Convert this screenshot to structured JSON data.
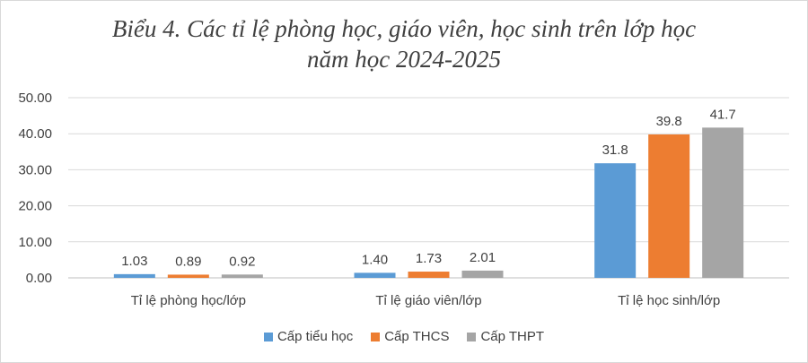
{
  "chart_data": {
    "type": "bar",
    "title_line1": "Biểu 4. Các tỉ lệ phòng học, giáo viên, học sinh trên lớp học",
    "title_line2": "năm học 2024-2025",
    "categories": [
      "Tỉ lệ phòng học/lớp",
      "Tỉ lệ giáo viên/lớp",
      "Tỉ lệ học sinh/lớp"
    ],
    "series": [
      {
        "name": "Cấp tiểu học",
        "color": "#5b9bd5",
        "values": [
          1.03,
          1.4,
          31.8
        ],
        "labels": [
          "1.03",
          "1.40",
          "31.8"
        ]
      },
      {
        "name": "Cấp THCS",
        "color": "#ed7d31",
        "values": [
          0.89,
          1.73,
          39.8
        ],
        "labels": [
          "0.89",
          "1.73",
          "39.8"
        ]
      },
      {
        "name": "Cấp THPT",
        "color": "#a5a5a5",
        "values": [
          0.92,
          2.01,
          41.7
        ],
        "labels": [
          "0.92",
          "2.01",
          "41.7"
        ]
      }
    ],
    "ylim": [
      0,
      50
    ],
    "yticks": [
      "0.00",
      "10.00",
      "20.00",
      "30.00",
      "40.00",
      "50.00"
    ],
    "grid": true,
    "legend_position": "bottom"
  }
}
